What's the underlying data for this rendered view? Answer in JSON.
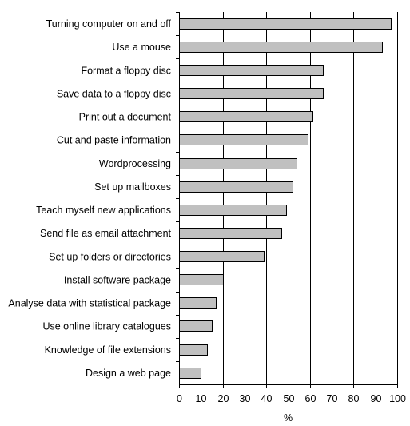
{
  "chart_data": {
    "type": "bar",
    "orientation": "horizontal",
    "categories": [
      "Turning computer on and off",
      "Use a mouse",
      "Format a floppy disc",
      "Save data to a floppy disc",
      "Print out a document",
      "Cut and paste information",
      "Wordprocessing",
      "Set up mailboxes",
      "Teach myself new applications",
      "Send file as email attachment",
      "Set up folders or directories",
      "Install software package",
      "Analyse data with statistical package",
      "Use online library catalogues",
      "Knowledge of file extensions",
      "Design a web page"
    ],
    "values": [
      97,
      93,
      66,
      66,
      61,
      59,
      54,
      52,
      49,
      47,
      39,
      20,
      17,
      15,
      13,
      10
    ],
    "title": "",
    "xlabel": "%",
    "ylabel": "",
    "xlim": [
      0,
      100
    ],
    "xticks": [
      "0",
      "10",
      "20",
      "30",
      "40",
      "50",
      "60",
      "70",
      "80",
      "90",
      "100"
    ],
    "grid": true,
    "legend": "none",
    "colors": {
      "bar_fill": "#c0c0c0",
      "bar_stroke": "#000000",
      "grid": "#000000",
      "text": "#000000"
    }
  }
}
